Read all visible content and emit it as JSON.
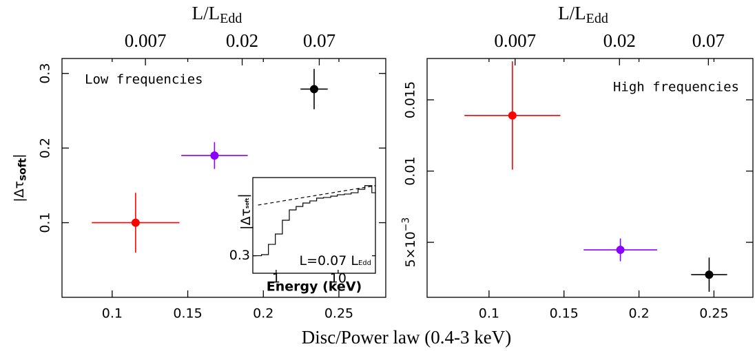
{
  "figure_xlabel": "Disc/Power law (0.4-3 keV)",
  "chart_data": [
    {
      "type": "scatter",
      "annotation": "Low frequencies",
      "ylabel": {
        "text": "|Δτ",
        "sub": "soft",
        "tail": "|"
      },
      "top_axis_label": {
        "text": "L/L",
        "sub": "Edd"
      },
      "xlim": [
        0.0668,
        0.281
      ],
      "ylim": [
        0,
        0.32
      ],
      "xticks": [
        0.1,
        0.15,
        0.2,
        0.25
      ],
      "yticks": [
        0.1,
        0.2,
        0.3
      ],
      "x2ticks": [
        {
          "value": 0.122,
          "label": "0.007"
        },
        {
          "value": 0.186,
          "label": "0.02"
        },
        {
          "value": 0.237,
          "label": "0.07"
        }
      ],
      "series": [
        {
          "colors": [
            "#ff0000",
            "#8a00ff",
            "#000000"
          ],
          "x": [
            0.1155,
            0.1677,
            0.2336
          ],
          "xerr": [
            0.029,
            0.022,
            0.009
          ],
          "values": [
            0.1,
            0.19,
            0.279
          ],
          "yerr": [
            0.04,
            0.018,
            0.027
          ]
        }
      ]
    },
    {
      "type": "scatter",
      "annotation": "High frequencies",
      "top_axis_label": {
        "text": "L/L",
        "sub": "Edd"
      },
      "xlim": [
        0.0587,
        0.276
      ],
      "ylim": [
        0.00114,
        0.0179
      ],
      "xticks": [
        0.1,
        0.15,
        0.2,
        0.25
      ],
      "yticks": [
        {
          "value": 0.005,
          "label": "5×10",
          "sup": "−3"
        },
        0.01,
        0.015
      ],
      "x2ticks": [
        {
          "value": 0.1174,
          "label": "0.007"
        },
        {
          "value": 0.187,
          "label": "0.02"
        },
        {
          "value": 0.2463,
          "label": "0.07"
        }
      ],
      "series": [
        {
          "colors": [
            "#ff0000",
            "#8a00ff",
            "#000000"
          ],
          "x": [
            0.1156,
            0.1876,
            0.2468
          ],
          "xerr": [
            0.032,
            0.0245,
            0.012
          ],
          "values": [
            0.0139,
            0.00447,
            0.00273
          ],
          "yerr": [
            0.0038,
            0.0008,
            0.0012
          ]
        }
      ]
    },
    {
      "type": "line",
      "xlabel": "Energy (keV)",
      "ylabel": {
        "text": "|Δτ",
        "sub": "soft",
        "tail": "|"
      },
      "annotation": {
        "text": "L=0.07 L",
        "sub": "Edd"
      },
      "xlog": true,
      "ylog": true,
      "xlim": [
        0.42,
        40
      ],
      "ylim": [
        0.22,
        1.2
      ],
      "xticks": [
        1,
        10
      ],
      "yticks": [
        0.3
      ],
      "series": [
        {
          "color": "#000000",
          "step": true,
          "x": [
            0.42,
            0.58,
            0.75,
            0.97,
            1.26,
            1.63,
            2.1,
            2.7,
            3.5,
            4.5,
            5.8,
            7.6,
            9.7,
            12.6,
            16.2,
            21,
            27,
            35
          ],
          "values": [
            0.3,
            0.306,
            0.367,
            0.441,
            0.563,
            0.676,
            0.719,
            0.764,
            0.793,
            0.833,
            0.843,
            0.863,
            0.885,
            0.896,
            0.917,
            0.975,
            1.04,
            0.917
          ]
        },
        {
          "color": "#000000",
          "dashed": true,
          "x": [
            0.51,
            40
          ],
          "values": [
            0.737,
            1.04
          ]
        }
      ]
    }
  ]
}
